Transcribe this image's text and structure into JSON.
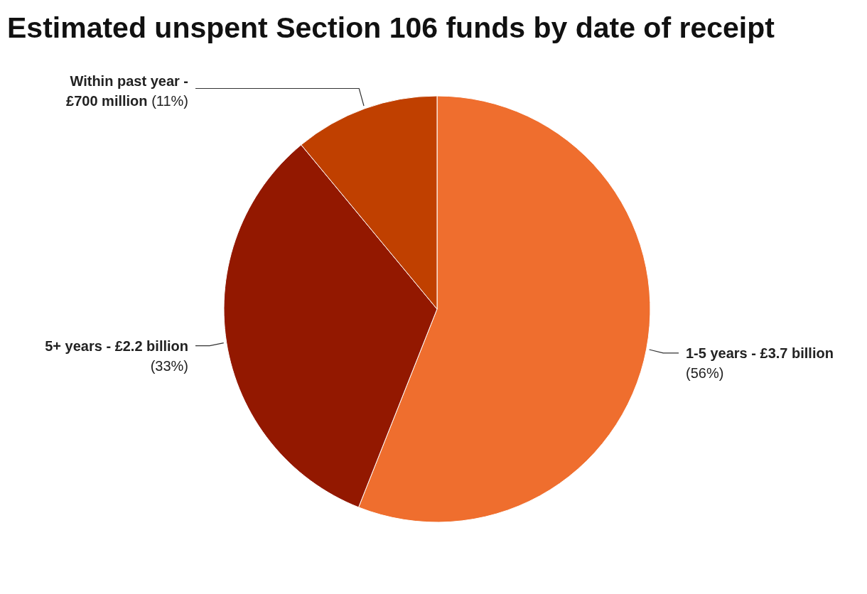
{
  "chart_data": {
    "type": "pie",
    "title": "Estimated unspent Section 106 funds by date of receipt",
    "categories": [
      "1-5 years - £3.7 billion",
      "5+ years - £2.2 billion",
      "Within past year - £700 million"
    ],
    "values": [
      56,
      33,
      11
    ],
    "value_labels": [
      "(56%)",
      "(33%)",
      "(11%)"
    ],
    "colors": [
      "#ef6e2e",
      "#931800",
      "#c04000"
    ],
    "legend": false
  }
}
